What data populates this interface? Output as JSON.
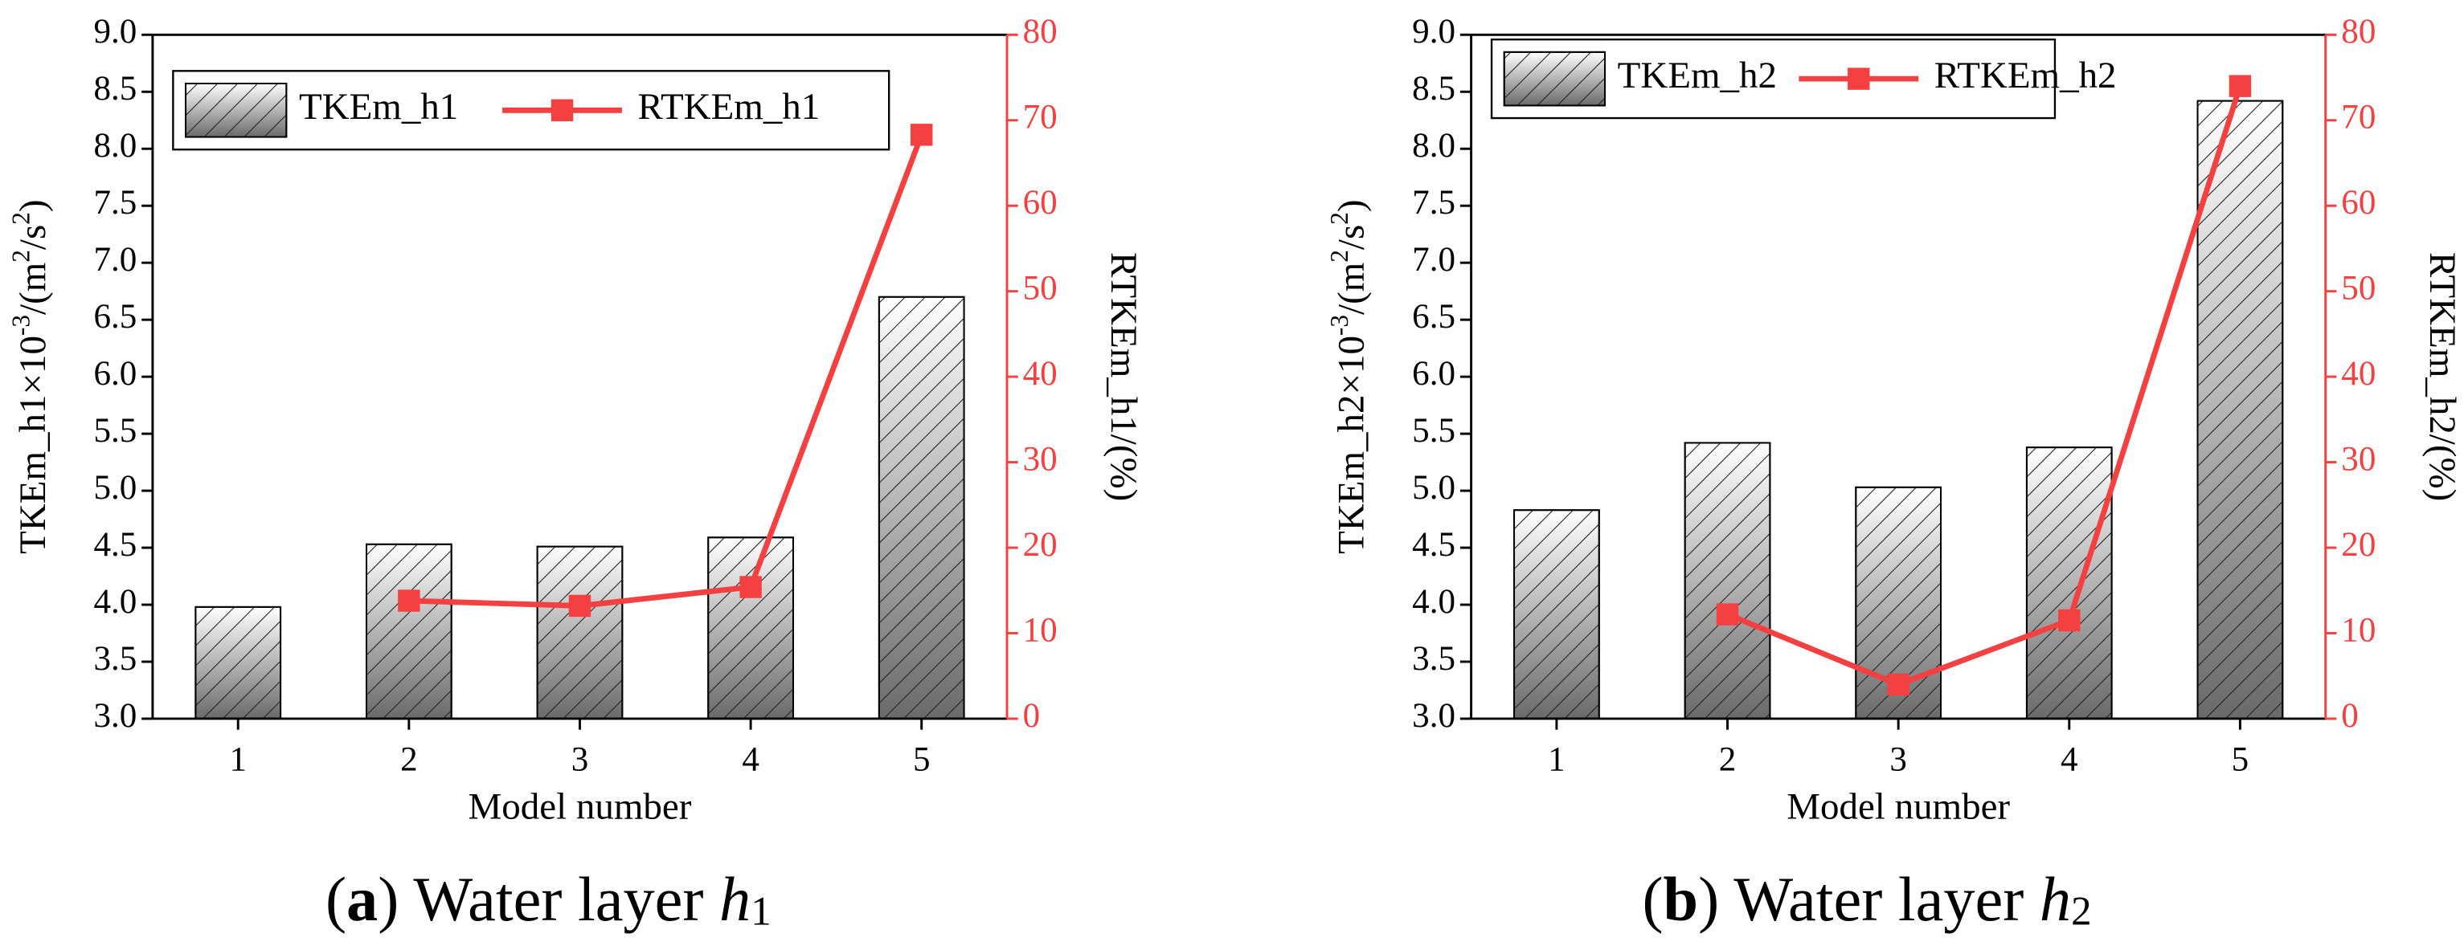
{
  "chart_data": [
    {
      "type": "combo",
      "legend": "upper left",
      "ylabel": [
        "TKEm_h1×10",
        "-3",
        "/(m",
        "2",
        "/s",
        "2",
        ")"
      ],
      "y2label": "RTKEm_h1/(%)",
      "xlabel": "Model number",
      "caption": [
        "(",
        "a",
        ") Water layer ",
        "h",
        "1"
      ],
      "categories": [
        "1",
        "2",
        "3",
        "4",
        "5"
      ],
      "series": [
        {
          "name": "TKEm_h1",
          "type": "bar",
          "color": "#555555",
          "values": [
            3.98,
            4.53,
            4.51,
            4.59,
            6.7
          ]
        },
        {
          "name": "RTKEm_h1",
          "type": "line",
          "axis": "y2",
          "color": "#f44040",
          "values": [
            null,
            13.8,
            13.2,
            15.4,
            68.3
          ]
        }
      ],
      "ylim": [
        3,
        9
      ],
      "yticks": [
        {
          "value": 3,
          "label": "3.0"
        },
        {
          "value": 3.5,
          "label": "3.5"
        },
        {
          "value": 4,
          "label": "4.0"
        },
        {
          "value": 4.5,
          "label": "4.5"
        },
        {
          "value": 5,
          "label": "5.0"
        },
        {
          "value": 5.5,
          "label": "5.5"
        },
        {
          "value": 6,
          "label": "6.0"
        },
        {
          "value": 6.5,
          "label": "6.5"
        },
        {
          "value": 7,
          "label": "7.0"
        },
        {
          "value": 7.5,
          "label": "7.5"
        },
        {
          "value": 8,
          "label": "8.0"
        },
        {
          "value": 8.5,
          "label": "8.5"
        },
        {
          "value": 9,
          "label": "9.0"
        }
      ],
      "y2lim": [
        0,
        80
      ],
      "y2ticks": [
        0,
        10,
        20,
        30,
        40,
        50,
        60,
        70,
        80
      ]
    },
    {
      "type": "combo",
      "legend": "upper left",
      "ylabel": [
        "TKEm_h2×10",
        "-3",
        "/(m",
        "2",
        "/s",
        "2",
        ")"
      ],
      "y2label": "RTKEm_h2/(%)",
      "xlabel": "Model number",
      "caption": [
        "(",
        "b",
        ") Water layer ",
        "h",
        "2"
      ],
      "categories": [
        "1",
        "2",
        "3",
        "4",
        "5"
      ],
      "series": [
        {
          "name": "TKEm_h2",
          "type": "bar",
          "color": "#555555",
          "values": [
            4.83,
            5.42,
            5.03,
            5.38,
            8.42
          ]
        },
        {
          "name": "RTKEm_h2",
          "type": "line",
          "axis": "y2",
          "color": "#f44040",
          "values": [
            null,
            12.2,
            4.0,
            11.5,
            74.0
          ]
        }
      ],
      "ylim": [
        3,
        9
      ],
      "yticks": [
        {
          "value": 3,
          "label": "3.0"
        },
        {
          "value": 3.5,
          "label": "3.5"
        },
        {
          "value": 4,
          "label": "4.0"
        },
        {
          "value": 4.5,
          "label": "4.5"
        },
        {
          "value": 5,
          "label": "5.0"
        },
        {
          "value": 5.5,
          "label": "5.5"
        },
        {
          "value": 6,
          "label": "6.0"
        },
        {
          "value": 6.5,
          "label": "6.5"
        },
        {
          "value": 7,
          "label": "7.0"
        },
        {
          "value": 7.5,
          "label": "7.5"
        },
        {
          "value": 8,
          "label": "8.0"
        },
        {
          "value": 8.5,
          "label": "8.5"
        },
        {
          "value": 9,
          "label": "9.0"
        }
      ],
      "y2lim": [
        0,
        80
      ],
      "y2ticks": [
        0,
        10,
        20,
        30,
        40,
        50,
        60,
        70,
        80
      ]
    }
  ]
}
